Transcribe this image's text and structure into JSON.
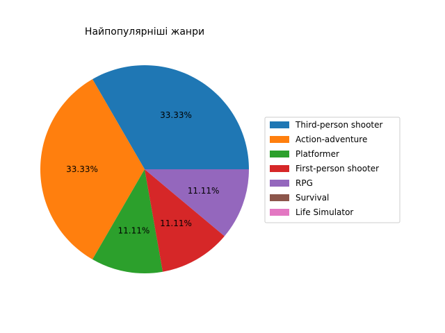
{
  "chart_data": {
    "type": "pie",
    "title": "Найпопулярніші жанри",
    "legend_position": "right",
    "slices": [
      {
        "label": "Third-person shooter",
        "value": 3,
        "pct_label": "33.33%",
        "color": "#1f77b4"
      },
      {
        "label": "Action-adventure",
        "value": 3,
        "pct_label": "33.33%",
        "color": "#ff7f0e"
      },
      {
        "label": "Platformer",
        "value": 1,
        "pct_label": "11.11%",
        "color": "#2ca02c"
      },
      {
        "label": "First-person shooter",
        "value": 1,
        "pct_label": "11.11%",
        "color": "#d62728"
      },
      {
        "label": "RPG",
        "value": 1,
        "pct_label": "11.11%",
        "color": "#9467bd"
      },
      {
        "label": "Survival",
        "value": 0,
        "pct_label": "",
        "color": "#8c564b"
      },
      {
        "label": "Life Simulator",
        "value": 0,
        "pct_label": "",
        "color": "#e377c2"
      }
    ]
  }
}
